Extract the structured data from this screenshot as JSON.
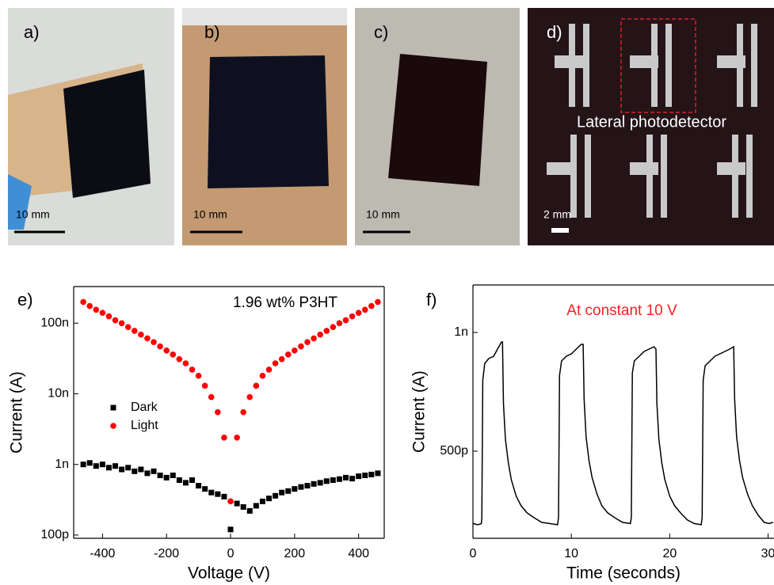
{
  "panels": [
    {
      "label": "a)",
      "scale": "10 mm"
    },
    {
      "label": "b)",
      "scale": "10 mm"
    },
    {
      "label": "c)",
      "scale": "10 mm"
    },
    {
      "label": "d)",
      "scale": "2 mm",
      "caption": "Lateral photodetector"
    }
  ],
  "chart_data": [
    {
      "type": "scatter",
      "panel_label": "e)",
      "annotation": "1.96 wt% P3HT",
      "x_label": "Voltage (V)",
      "y_label": "Current (A)",
      "log_y": true,
      "xlim": [
        -490,
        480
      ],
      "ylim": [
        9e-11,
        3.3e-07
      ],
      "xticks": [
        -400,
        -200,
        0,
        200,
        400
      ],
      "yticks": [
        {
          "value": 1e-10,
          "label": "100p"
        },
        {
          "value": 1e-09,
          "label": "1n"
        },
        {
          "value": 1e-08,
          "label": "10n"
        },
        {
          "value": 1e-07,
          "label": "100n"
        }
      ],
      "x": [
        -460,
        -440,
        -420,
        -400,
        -380,
        -360,
        -340,
        -320,
        -300,
        -280,
        -260,
        -240,
        -220,
        -200,
        -180,
        -160,
        -140,
        -120,
        -100,
        -80,
        -60,
        -40,
        -20,
        0,
        20,
        40,
        60,
        80,
        100,
        120,
        140,
        160,
        180,
        200,
        220,
        240,
        260,
        280,
        300,
        320,
        340,
        360,
        380,
        400,
        420,
        440,
        460
      ],
      "series": [
        {
          "name": "Dark",
          "color": "#000000",
          "marker": "square",
          "values": [
            1e-09,
            1.05e-09,
            9.5e-10,
            1e-09,
            9e-10,
            9.5e-10,
            8.5e-10,
            9e-10,
            8e-10,
            8.5e-10,
            7.5e-10,
            8e-10,
            7e-10,
            6.5e-10,
            7e-10,
            6e-10,
            5.5e-10,
            6e-10,
            5e-10,
            4.5e-10,
            4e-10,
            3.8e-10,
            3.5e-10,
            1.2e-10,
            2.8e-10,
            2.5e-10,
            2.2e-10,
            2.6e-10,
            3e-10,
            3.3e-10,
            3.6e-10,
            4e-10,
            4.2e-10,
            4.5e-10,
            4.8e-10,
            5e-10,
            5.3e-10,
            5.5e-10,
            5.8e-10,
            6e-10,
            6.2e-10,
            6.5e-10,
            6.3e-10,
            6.8e-10,
            7e-10,
            7.2e-10,
            7.5e-10
          ]
        },
        {
          "name": "Light",
          "color": "#ff0000",
          "marker": "circle",
          "values": [
            2e-07,
            1.75e-07,
            1.55e-07,
            1.4e-07,
            1.25e-07,
            1.1e-07,
            1e-07,
            8.8e-08,
            7.8e-08,
            6.9e-08,
            6.1e-08,
            5.4e-08,
            4.7e-08,
            4.1e-08,
            3.6e-08,
            3.1e-08,
            2.7e-08,
            2.2e-08,
            1.8e-08,
            1.3e-08,
            9e-09,
            5.5e-09,
            2.4e-09,
            3e-10,
            2.4e-09,
            5.5e-09,
            9e-09,
            1.3e-08,
            1.8e-08,
            2.2e-08,
            2.7e-08,
            3.1e-08,
            3.6e-08,
            4.1e-08,
            4.7e-08,
            5.4e-08,
            6.1e-08,
            6.9e-08,
            7.8e-08,
            8.8e-08,
            1e-07,
            1.1e-07,
            1.25e-07,
            1.4e-07,
            1.55e-07,
            1.75e-07,
            2e-07
          ]
        }
      ]
    },
    {
      "type": "line",
      "panel_label": "f)",
      "annotation": "At constant 10 V",
      "annotation_color": "#ff2020",
      "x_label": "Time (seconds)",
      "y_label": "Current (A)",
      "xlim": [
        0,
        30.6
      ],
      "ylim": [
        1.33e-10,
        1.2e-09
      ],
      "xticks": [
        0,
        10,
        20,
        30
      ],
      "yticks": [
        {
          "value": 5e-10,
          "label": "500p"
        },
        {
          "value": 1e-09,
          "label": "1n"
        }
      ],
      "x": [
        0,
        0.5,
        0.85,
        0.9,
        1.0,
        1.2,
        1.6,
        2.1,
        2.5,
        2.9,
        3.0,
        3.1,
        3.3,
        3.6,
        3.9,
        4.4,
        4.9,
        5.5,
        6.2,
        7.0,
        7.8,
        8.6,
        8.7,
        8.8,
        9.0,
        9.5,
        10.0,
        10.5,
        11.0,
        11.2,
        11.3,
        11.5,
        11.8,
        12.1,
        12.6,
        13.1,
        13.7,
        14.4,
        15.2,
        16.0,
        16.1,
        16.2,
        16.4,
        16.9,
        17.4,
        17.9,
        18.4,
        18.6,
        18.7,
        18.9,
        19.2,
        19.5,
        20.0,
        20.5,
        21.1,
        21.8,
        22.5,
        23.2,
        23.3,
        23.4,
        23.6,
        24.1,
        24.6,
        25.1,
        25.6,
        26.1,
        26.5,
        26.6,
        26.8,
        27.1,
        27.4,
        27.9,
        28.4,
        29.0,
        29.6,
        30.1,
        30.5
      ],
      "series": [
        {
          "color": "#000000",
          "values": [
            1.95e-10,
            1.9e-10,
            1.95e-10,
            2.2e-10,
            8e-10,
            8.7e-10,
            8.9e-10,
            9e-10,
            9.3e-10,
            9.6e-10,
            9.6e-10,
            7e-10,
            5.5e-10,
            4.5e-10,
            3.8e-10,
            3.1e-10,
            2.7e-10,
            2.4e-10,
            2.2e-10,
            2e-10,
            1.95e-10,
            1.9e-10,
            2.2e-10,
            8.2e-10,
            8.8e-10,
            9e-10,
            9.1e-10,
            9.3e-10,
            9.5e-10,
            9.5e-10,
            7.2e-10,
            5.6e-10,
            4.6e-10,
            3.9e-10,
            3.2e-10,
            2.7e-10,
            2.4e-10,
            2.2e-10,
            2e-10,
            1.95e-10,
            2.2e-10,
            8.3e-10,
            8.8e-10,
            9e-10,
            9.2e-10,
            9.3e-10,
            9.4e-10,
            9.3e-10,
            7e-10,
            5.5e-10,
            4.5e-10,
            3.8e-10,
            3.1e-10,
            2.7e-10,
            2.4e-10,
            2.1e-10,
            1.95e-10,
            1.9e-10,
            2.2e-10,
            8e-10,
            8.6e-10,
            8.8e-10,
            9e-10,
            9.1e-10,
            9.2e-10,
            9.3e-10,
            9.4e-10,
            7.2e-10,
            5.6e-10,
            4.6e-10,
            3.9e-10,
            3.2e-10,
            2.7e-10,
            2.3e-10,
            2e-10,
            1.95e-10,
            2e-10
          ]
        }
      ]
    }
  ]
}
